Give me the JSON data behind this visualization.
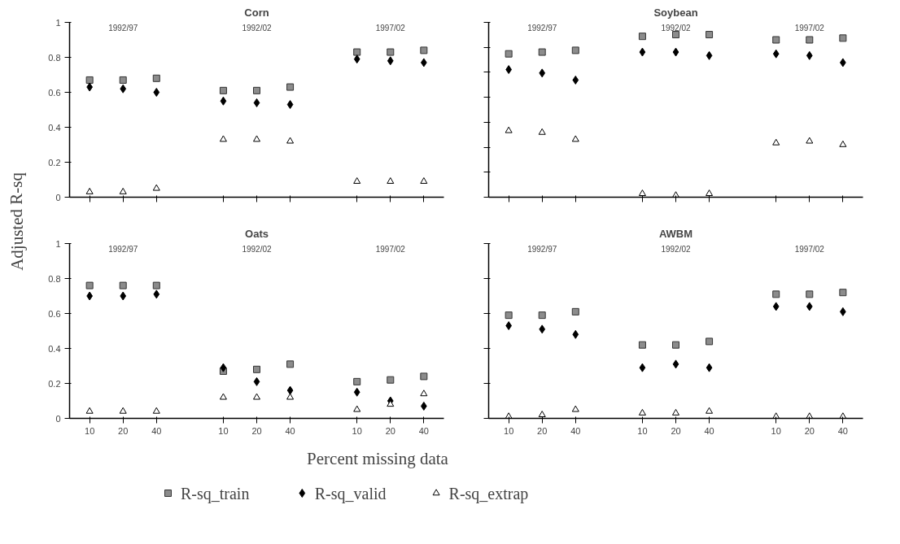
{
  "chart_data": [
    {
      "type": "scatter",
      "title": "Corn",
      "ylabel": "Adjusted R-sq",
      "categories": [
        "10",
        "20",
        "40",
        null,
        "10",
        "20",
        "40",
        null,
        "10",
        "20",
        "40"
      ],
      "ylim": [
        0,
        1
      ],
      "yticks": [
        0,
        0.2,
        0.4,
        0.6,
        0.8,
        1
      ],
      "tick_labels": "y",
      "grid": false,
      "legend": "bottom",
      "annotations": [
        "1992/97",
        "1992/02",
        "1997/02"
      ],
      "series": [
        {
          "name": "R-sq_train",
          "color": "#8c8c8c",
          "marker": "square",
          "values": [
            0.67,
            0.67,
            0.68,
            null,
            0.61,
            0.61,
            0.63,
            null,
            0.83,
            0.83,
            0.84
          ]
        },
        {
          "name": "R-sq_valid",
          "color": "#000000",
          "marker": "diamond",
          "values": [
            0.63,
            0.62,
            0.6,
            null,
            0.55,
            0.54,
            0.53,
            null,
            0.79,
            0.78,
            0.77
          ]
        },
        {
          "name": "R-sq_extrap",
          "color": "#000000",
          "marker": "triangle",
          "values": [
            0.03,
            0.03,
            0.05,
            null,
            0.33,
            0.33,
            0.32,
            null,
            0.09,
            0.09,
            0.09
          ]
        }
      ]
    },
    {
      "type": "scatter",
      "title": "Soybean",
      "categories": [
        "10",
        "20",
        "40",
        null,
        "10",
        "20",
        "40",
        null,
        "10",
        "20",
        "40"
      ],
      "ylim": [
        0,
        1
      ],
      "yticks": [
        {
          "value": 0,
          "label": null
        },
        {
          "value": 0.143,
          "label": null
        },
        {
          "value": 0.286,
          "label": null
        },
        {
          "value": 0.429,
          "label": null
        },
        {
          "value": 0.571,
          "label": null
        },
        {
          "value": 0.714,
          "label": null
        },
        {
          "value": 0.857,
          "label": null
        },
        {
          "value": 1,
          "label": null
        }
      ],
      "tick_labels": false,
      "grid": false,
      "annotations": [
        "1992/97",
        "1992/02",
        "1997/02"
      ],
      "series": [
        {
          "color": "#8c8c8c",
          "marker": "square",
          "values": [
            0.82,
            0.83,
            0.84,
            null,
            0.92,
            0.93,
            0.93,
            null,
            0.9,
            0.9,
            0.91
          ]
        },
        {
          "color": "#000000",
          "marker": "diamond",
          "values": [
            0.73,
            0.71,
            0.67,
            null,
            0.83,
            0.83,
            0.81,
            null,
            0.82,
            0.81,
            0.77
          ]
        },
        {
          "color": "#000000",
          "marker": "triangle",
          "values": [
            0.38,
            0.37,
            0.33,
            null,
            0.02,
            0.01,
            0.02,
            null,
            0.31,
            0.32,
            0.3
          ]
        }
      ]
    },
    {
      "type": "scatter",
      "title": "Oats",
      "xlabel": "Percent missing data",
      "categories": [
        "10",
        "20",
        "40",
        null,
        "10",
        "20",
        "40",
        null,
        "10",
        "20",
        "40"
      ],
      "ylim": [
        0,
        1
      ],
      "yticks": [
        0,
        0.2,
        0.4,
        0.6,
        0.8,
        1
      ],
      "grid": false,
      "annotations": [
        "1992/97",
        "1992/02",
        "1997/02"
      ],
      "series": [
        {
          "color": "#8c8c8c",
          "marker": "square",
          "values": [
            0.76,
            0.76,
            0.76,
            null,
            0.27,
            0.28,
            0.31,
            null,
            0.21,
            0.22,
            0.24
          ]
        },
        {
          "color": "#000000",
          "marker": "diamond",
          "values": [
            0.7,
            0.7,
            0.71,
            null,
            0.29,
            0.21,
            0.16,
            null,
            0.15,
            0.1,
            0.07
          ]
        },
        {
          "color": "#000000",
          "marker": "triangle",
          "values": [
            0.04,
            0.04,
            0.04,
            null,
            0.12,
            0.12,
            0.12,
            null,
            0.05,
            0.08,
            0.14
          ]
        }
      ]
    },
    {
      "type": "scatter",
      "title": "AWBM",
      "categories": [
        "10",
        "20",
        "40",
        null,
        "10",
        "20",
        "40",
        null,
        "10",
        "20",
        "40"
      ],
      "ylim": [
        0,
        1
      ],
      "yticks": [
        {
          "value": 0,
          "label": null
        },
        {
          "value": 0.2,
          "label": null
        },
        {
          "value": 0.4,
          "label": null
        },
        {
          "value": 0.6,
          "label": null
        },
        {
          "value": 0.8,
          "label": null
        },
        {
          "value": 1,
          "label": null
        }
      ],
      "tick_labels": "x",
      "grid": false,
      "annotations": [
        "1992/97",
        "1992/02",
        "1997/02"
      ],
      "series": [
        {
          "color": "#8c8c8c",
          "marker": "square",
          "values": [
            0.59,
            0.59,
            0.61,
            null,
            0.42,
            0.42,
            0.44,
            null,
            0.71,
            0.71,
            0.72
          ]
        },
        {
          "color": "#000000",
          "marker": "diamond",
          "values": [
            0.53,
            0.51,
            0.48,
            null,
            0.29,
            0.31,
            0.29,
            null,
            0.64,
            0.64,
            0.61
          ]
        },
        {
          "color": "#000000",
          "marker": "triangle",
          "values": [
            0.01,
            0.02,
            0.05,
            null,
            0.03,
            0.03,
            0.04,
            null,
            0.01,
            0.01,
            0.01
          ]
        }
      ]
    }
  ]
}
